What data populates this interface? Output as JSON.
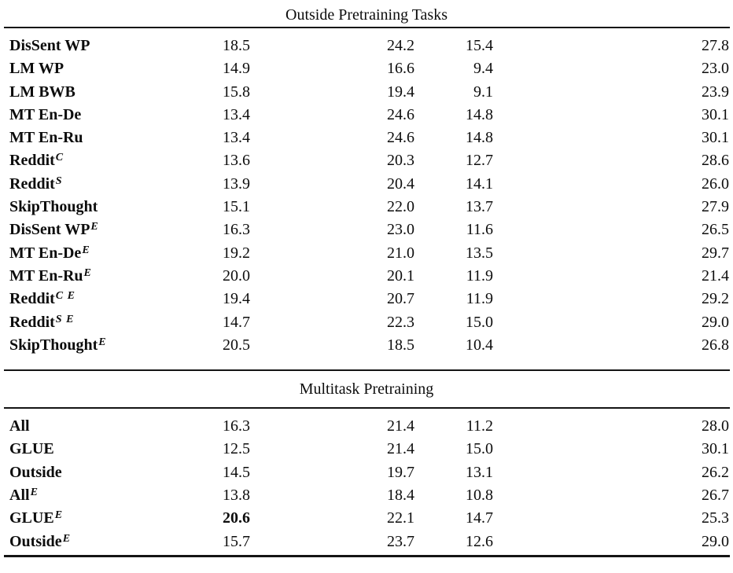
{
  "table": {
    "text_color": "#0d0d0d",
    "rule_color": "#141414",
    "sections": [
      {
        "header": "Outside Pretraining Tasks",
        "rows": [
          {
            "label": "DisSent WP",
            "sup": "",
            "values": [
              "18.5",
              "24.2",
              "15.4",
              "27.8"
            ],
            "bold": []
          },
          {
            "label": "LM WP",
            "sup": "",
            "values": [
              "14.9",
              "16.6",
              "9.4",
              "23.0"
            ],
            "bold": []
          },
          {
            "label": "LM BWB",
            "sup": "",
            "values": [
              "15.8",
              "19.4",
              "9.1",
              "23.9"
            ],
            "bold": []
          },
          {
            "label": "MT En-De",
            "sup": "",
            "values": [
              "13.4",
              "24.6",
              "14.8",
              "30.1"
            ],
            "bold": []
          },
          {
            "label": "MT En-Ru",
            "sup": "",
            "values": [
              "13.4",
              "24.6",
              "14.8",
              "30.1"
            ],
            "bold": []
          },
          {
            "label": "Reddit",
            "sup": "C",
            "values": [
              "13.6",
              "20.3",
              "12.7",
              "28.6"
            ],
            "bold": []
          },
          {
            "label": "Reddit",
            "sup": "S",
            "values": [
              "13.9",
              "20.4",
              "14.1",
              "26.0"
            ],
            "bold": []
          },
          {
            "label": "SkipThought",
            "sup": "",
            "values": [
              "15.1",
              "22.0",
              "13.7",
              "27.9"
            ],
            "bold": []
          },
          {
            "label": "DisSent WP",
            "sup": "E",
            "values": [
              "16.3",
              "23.0",
              "11.6",
              "26.5"
            ],
            "bold": []
          },
          {
            "label": "MT En-De",
            "sup": "E",
            "values": [
              "19.2",
              "21.0",
              "13.5",
              "29.7"
            ],
            "bold": []
          },
          {
            "label": "MT En-Ru",
            "sup": "E",
            "values": [
              "20.0",
              "20.1",
              "11.9",
              "21.4"
            ],
            "bold": []
          },
          {
            "label": "Reddit",
            "sup": "C E",
            "values": [
              "19.4",
              "20.7",
              "11.9",
              "29.2"
            ],
            "bold": []
          },
          {
            "label": "Reddit",
            "sup": "S E",
            "values": [
              "14.7",
              "22.3",
              "15.0",
              "29.0"
            ],
            "bold": []
          },
          {
            "label": "SkipThought",
            "sup": "E",
            "values": [
              "20.5",
              "18.5",
              "10.4",
              "26.8"
            ],
            "bold": []
          }
        ]
      },
      {
        "header": "Multitask Pretraining",
        "rows": [
          {
            "label": "All",
            "sup": "",
            "values": [
              "16.3",
              "21.4",
              "11.2",
              "28.0"
            ],
            "bold": []
          },
          {
            "label": "GLUE",
            "sup": "",
            "values": [
              "12.5",
              "21.4",
              "15.0",
              "30.1"
            ],
            "bold": []
          },
          {
            "label": "Outside",
            "sup": "",
            "values": [
              "14.5",
              "19.7",
              "13.1",
              "26.2"
            ],
            "bold": []
          },
          {
            "label": "All",
            "sup": "E",
            "values": [
              "13.8",
              "18.4",
              "10.8",
              "26.7"
            ],
            "bold": []
          },
          {
            "label": "GLUE",
            "sup": "E",
            "values": [
              "20.6",
              "22.1",
              "14.7",
              "25.3"
            ],
            "bold": [
              0
            ]
          },
          {
            "label": "Outside",
            "sup": "E",
            "values": [
              "15.7",
              "23.7",
              "12.6",
              "29.0"
            ],
            "bold": []
          }
        ]
      }
    ]
  }
}
